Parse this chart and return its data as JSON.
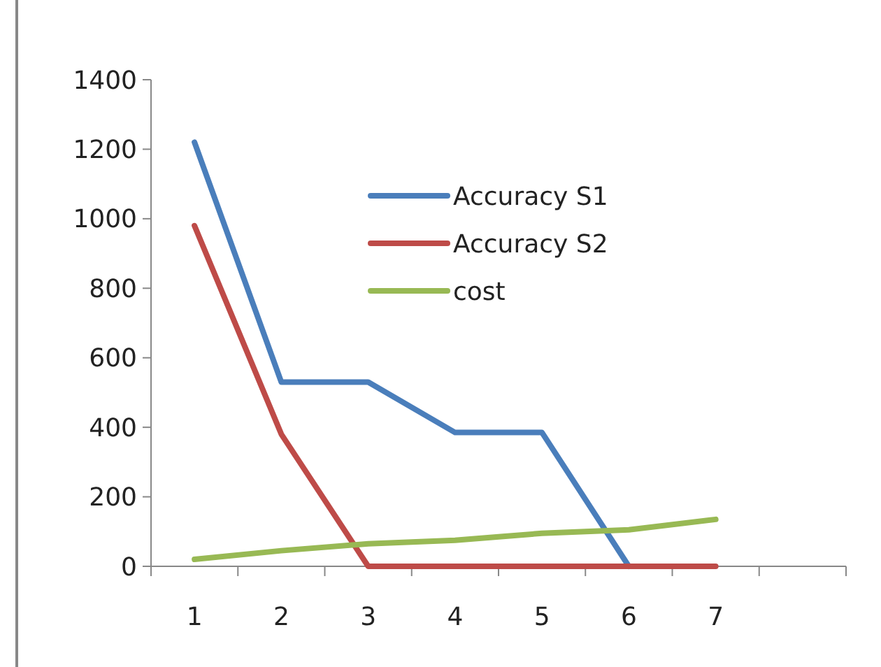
{
  "chart_data": {
    "type": "line",
    "categories": [
      "1",
      "2",
      "3",
      "4",
      "5",
      "6",
      "7",
      null
    ],
    "series": [
      {
        "name": "Accuracy S1",
        "color": "#4a7ebb",
        "values": [
          1220,
          530,
          530,
          385,
          385,
          0,
          null,
          null
        ]
      },
      {
        "name": "Accuracy S2",
        "color": "#be4b48",
        "values": [
          980,
          380,
          0,
          0,
          0,
          0,
          0,
          null
        ]
      },
      {
        "name": "cost",
        "color": "#98b954",
        "values": [
          20,
          45,
          65,
          75,
          95,
          105,
          135,
          null
        ]
      }
    ],
    "ylim": [
      0,
      1400
    ],
    "yticks": [
      0,
      200,
      400,
      600,
      800,
      1000,
      1200,
      1400
    ],
    "grid": false,
    "legend": "top",
    "line_style": "solid"
  }
}
